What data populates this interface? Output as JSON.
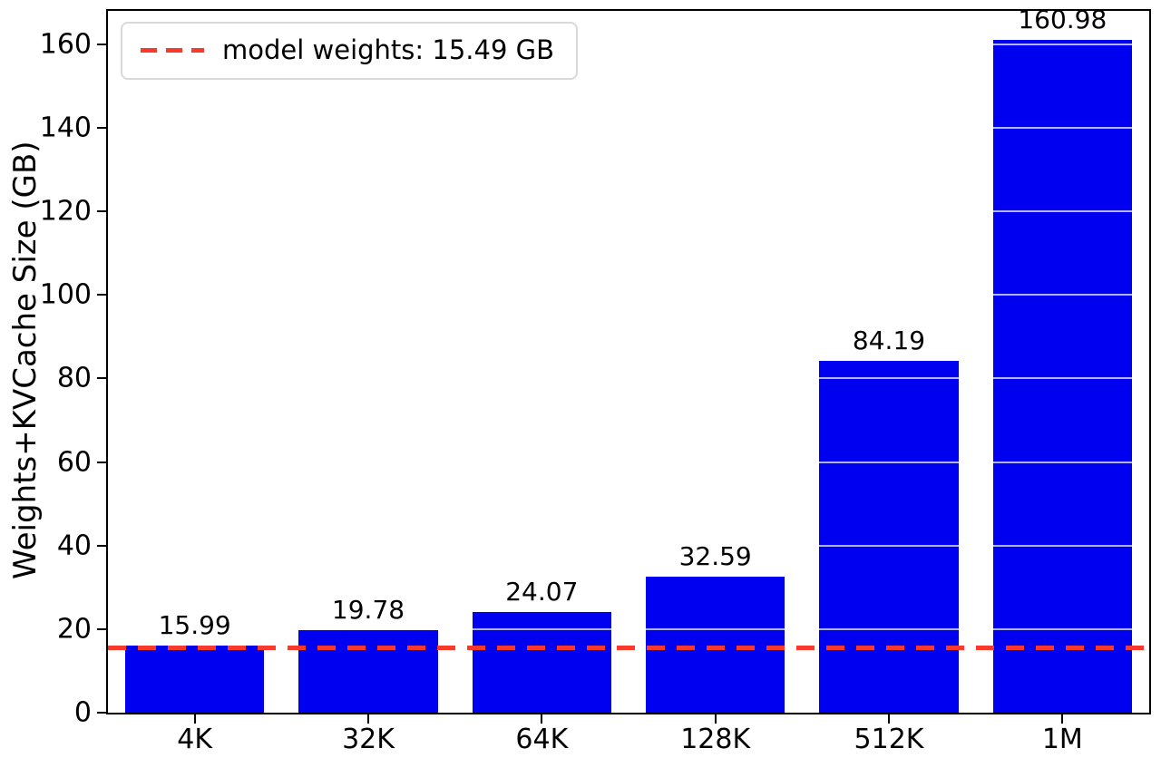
{
  "figure": {
    "background": "#ffffff"
  },
  "chart_data": {
    "type": "bar",
    "title": "",
    "xlabel": "",
    "ylabel": "Weights+KVCache Size (GB)",
    "categories": [
      "4K",
      "32K",
      "64K",
      "128K",
      "512K",
      "1M"
    ],
    "values": [
      15.99,
      19.78,
      24.07,
      32.59,
      84.19,
      160.98
    ],
    "bar_labels": [
      "15.99",
      "19.78",
      "24.07",
      "32.59",
      "84.19",
      "160.98"
    ],
    "yticks": [
      0,
      20,
      40,
      60,
      80,
      100,
      120,
      140,
      160
    ],
    "ylim": [
      0,
      168
    ],
    "bar_color": "#0000f0",
    "grid": "y-white-over-bars",
    "legend_position": "upper-left",
    "threshold": {
      "value": 15.49,
      "label": "model weights: 15.49 GB",
      "color": "#f8392b",
      "style": "dashed"
    }
  }
}
